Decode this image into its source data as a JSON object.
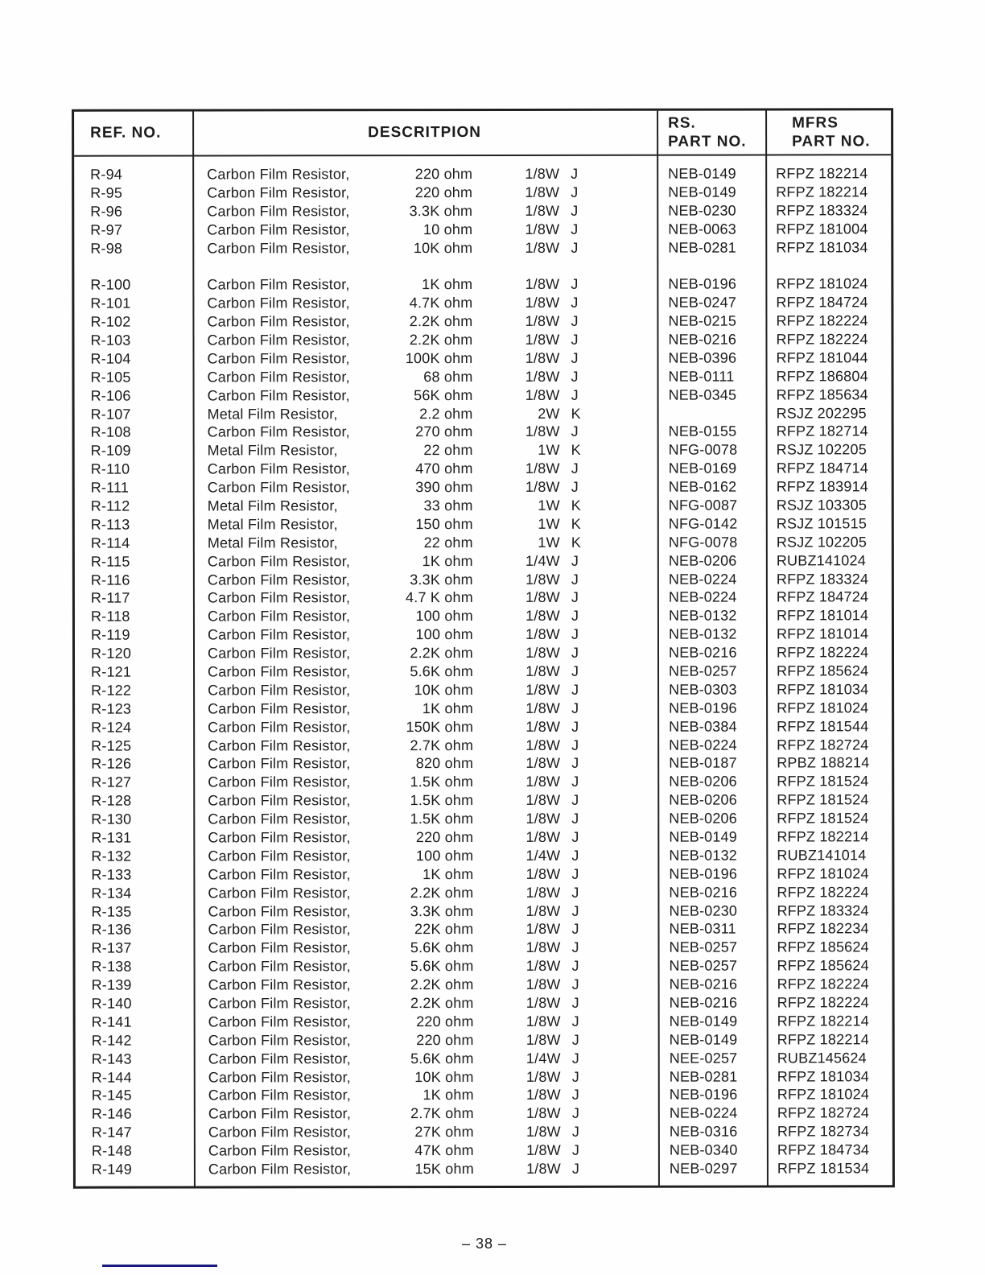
{
  "document": {
    "page_number": "– 38 –"
  },
  "colors": {
    "ink": "#1c1c1c",
    "paper": "#fefefe",
    "footer_line": "#1a1a7e"
  },
  "table": {
    "headers": {
      "ref": "REF. NO.",
      "description": "DESCRITPION",
      "rs_line1": "RS.",
      "rs_line2": "PART NO.",
      "mfrs_line1": "MFRS",
      "mfrs_line2": "PART NO."
    },
    "rows": [
      {
        "ref": "R-94",
        "name": "Carbon Film Resistor,",
        "value": "220 ohm",
        "watt": "1/8W",
        "tol": "J",
        "rs": "NEB-0149",
        "mfrs": "RFPZ 182214"
      },
      {
        "ref": "R-95",
        "name": "Carbon Film Resistor,",
        "value": "220 ohm",
        "watt": "1/8W",
        "tol": "J",
        "rs": "NEB-0149",
        "mfrs": "RFPZ 182214"
      },
      {
        "ref": "R-96",
        "name": "Carbon Film Resistor,",
        "value": "3.3K ohm",
        "watt": "1/8W",
        "tol": "J",
        "rs": "NEB-0230",
        "mfrs": "RFPZ 183324"
      },
      {
        "ref": "R-97",
        "name": "Carbon Film Resistor,",
        "value": "10 ohm",
        "watt": "1/8W",
        "tol": "J",
        "rs": "NEB-0063",
        "mfrs": "RFPZ 181004"
      },
      {
        "ref": "R-98",
        "name": "Carbon Film Resistor,",
        "value": "10K ohm",
        "watt": "1/8W",
        "tol": "J",
        "rs": "NEB-0281",
        "mfrs": "RFPZ 181034"
      },
      {
        "gap": true
      },
      {
        "ref": "R-100",
        "name": "Carbon Film Resistor,",
        "value": "1K ohm",
        "watt": "1/8W",
        "tol": "J",
        "rs": "NEB-0196",
        "mfrs": "RFPZ 181024"
      },
      {
        "ref": "R-101",
        "name": "Carbon Film Resistor,",
        "value": "4.7K ohm",
        "watt": "1/8W",
        "tol": "J",
        "rs": "NEB-0247",
        "mfrs": "RFPZ 184724"
      },
      {
        "ref": "R-102",
        "name": "Carbon Film Resistor,",
        "value": "2.2K ohm",
        "watt": "1/8W",
        "tol": "J",
        "rs": "NEB-0215",
        "mfrs": "RFPZ 182224"
      },
      {
        "ref": "R-103",
        "name": "Carbon Film Resistor,",
        "value": "2.2K ohm",
        "watt": "1/8W",
        "tol": "J",
        "rs": "NEB-0216",
        "mfrs": "RFPZ 182224"
      },
      {
        "ref": "R-104",
        "name": "Carbon Film Resistor,",
        "value": "100K ohm",
        "watt": "1/8W",
        "tol": "J",
        "rs": "NEB-0396",
        "mfrs": "RFPZ 181044"
      },
      {
        "ref": "R-105",
        "name": "Carbon Film Resistor,",
        "value": "68 ohm",
        "watt": "1/8W",
        "tol": "J",
        "rs": "NEB-0111",
        "mfrs": "RFPZ 186804"
      },
      {
        "ref": "R-106",
        "name": "Carbon Film Resistor,",
        "value": "56K ohm",
        "watt": "1/8W",
        "tol": "J",
        "rs": "NEB-0345",
        "mfrs": "RFPZ 185634"
      },
      {
        "ref": "R-107",
        "name": "Metal Film Resistor,",
        "value": "2.2 ohm",
        "watt": "2W",
        "tol": "K",
        "rs": "",
        "mfrs": "RSJZ 202295"
      },
      {
        "ref": "R-108",
        "name": "Carbon Film Resistor,",
        "value": "270 ohm",
        "watt": "1/8W",
        "tol": "J",
        "rs": "NEB-0155",
        "mfrs": "RFPZ 182714"
      },
      {
        "ref": "R-109",
        "name": "Metal Film Resistor,",
        "value": "22 ohm",
        "watt": "1W",
        "tol": "K",
        "rs": "NFG-0078",
        "mfrs": "RSJZ 102205"
      },
      {
        "ref": "R-110",
        "name": "Carbon Film Resistor,",
        "value": "470 ohm",
        "watt": "1/8W",
        "tol": "J",
        "rs": "NEB-0169",
        "mfrs": "RFPZ 184714"
      },
      {
        "ref": "R-111",
        "name": "Carbon Film Resistor,",
        "value": "390 ohm",
        "watt": "1/8W",
        "tol": "J",
        "rs": "NEB-0162",
        "mfrs": "RFPZ 183914"
      },
      {
        "ref": "R-112",
        "name": "Metal Film Resistor,",
        "value": "33 ohm",
        "watt": "1W",
        "tol": "K",
        "rs": "NFG-0087",
        "mfrs": "RSJZ 103305"
      },
      {
        "ref": "R-113",
        "name": "Metal Film Resistor,",
        "value": "150 ohm",
        "watt": "1W",
        "tol": "K",
        "rs": "NFG-0142",
        "mfrs": "RSJZ 101515"
      },
      {
        "ref": "R-114",
        "name": "Metal Film Resistor,",
        "value": "22 ohm",
        "watt": "1W",
        "tol": "K",
        "rs": "NFG-0078",
        "mfrs": "RSJZ 102205"
      },
      {
        "ref": "R-115",
        "name": "Carbon Film Resistor,",
        "value": "1K ohm",
        "watt": "1/4W",
        "tol": "J",
        "rs": "NEB-0206",
        "mfrs": "RUBZ141024"
      },
      {
        "ref": "R-116",
        "name": "Carbon Film Resistor,",
        "value": "3.3K ohm",
        "watt": "1/8W",
        "tol": "J",
        "rs": "NEB-0224",
        "mfrs": "RFPZ 183324"
      },
      {
        "ref": "R-117",
        "name": "Carbon Film Resistor,",
        "value": "4.7 K ohm",
        "watt": "1/8W",
        "tol": "J",
        "rs": "NEB-0224",
        "mfrs": "RFPZ 184724"
      },
      {
        "ref": "R-118",
        "name": "Carbon Film Resistor,",
        "value": "100 ohm",
        "watt": "1/8W",
        "tol": "J",
        "rs": "NEB-0132",
        "mfrs": "RFPZ 181014"
      },
      {
        "ref": "R-119",
        "name": "Carbon Film Resistor,",
        "value": "100 ohm",
        "watt": "1/8W",
        "tol": "J",
        "rs": "NEB-0132",
        "mfrs": "RFPZ 181014"
      },
      {
        "ref": "R-120",
        "name": "Carbon Film Resistor,",
        "value": "2.2K ohm",
        "watt": "1/8W",
        "tol": "J",
        "rs": "NEB-0216",
        "mfrs": "RFPZ 182224"
      },
      {
        "ref": "R-121",
        "name": "Carbon Film Resistor,",
        "value": "5.6K ohm",
        "watt": "1/8W",
        "tol": "J",
        "rs": "NEB-0257",
        "mfrs": "RFPZ 185624"
      },
      {
        "ref": "R-122",
        "name": "Carbon Film Resistor,",
        "value": "10K ohm",
        "watt": "1/8W",
        "tol": "J",
        "rs": "NEB-0303",
        "mfrs": "RFPZ 181034"
      },
      {
        "ref": "R-123",
        "name": "Carbon Film Resistor,",
        "value": "1K ohm",
        "watt": "1/8W",
        "tol": "J",
        "rs": "NEB-0196",
        "mfrs": "RFPZ 181024"
      },
      {
        "ref": "R-124",
        "name": "Carbon Film Resistor,",
        "value": "150K ohm",
        "watt": "1/8W",
        "tol": "J",
        "rs": "NEB-0384",
        "mfrs": "RFPZ 181544"
      },
      {
        "ref": "R-125",
        "name": "Carbon Film Resistor,",
        "value": "2.7K ohm",
        "watt": "1/8W",
        "tol": "J",
        "rs": "NEB-0224",
        "mfrs": "RFPZ 182724"
      },
      {
        "ref": "R-126",
        "name": "Carbon Film Resistor,",
        "value": "820 ohm",
        "watt": "1/8W",
        "tol": "J",
        "rs": "NEB-0187",
        "mfrs": "RPBZ 188214"
      },
      {
        "ref": "R-127",
        "name": "Carbon Film Resistor,",
        "value": "1.5K ohm",
        "watt": "1/8W",
        "tol": "J",
        "rs": "NEB-0206",
        "mfrs": "RFPZ 181524"
      },
      {
        "ref": "R-128",
        "name": "Carbon Film Resistor,",
        "value": "1.5K ohm",
        "watt": "1/8W",
        "tol": "J",
        "rs": "NEB-0206",
        "mfrs": "RFPZ 181524"
      },
      {
        "ref": "R-130",
        "name": "Carbon Film Resistor,",
        "value": "1.5K ohm",
        "watt": "1/8W",
        "tol": "J",
        "rs": "NEB-0206",
        "mfrs": "RFPZ 181524"
      },
      {
        "ref": "R-131",
        "name": "Carbon Film Resistor,",
        "value": "220 ohm",
        "watt": "1/8W",
        "tol": "J",
        "rs": "NEB-0149",
        "mfrs": "RFPZ 182214"
      },
      {
        "ref": "R-132",
        "name": "Carbon Film Resistor,",
        "value": "100 ohm",
        "watt": "1/4W",
        "tol": "J",
        "rs": "NEB-0132",
        "mfrs": "RUBZ141014"
      },
      {
        "ref": "R-133",
        "name": "Carbon Film Resistor,",
        "value": "1K ohm",
        "watt": "1/8W",
        "tol": "J",
        "rs": "NEB-0196",
        "mfrs": "RFPZ 181024"
      },
      {
        "ref": "R-134",
        "name": "Carbon Film Resistor,",
        "value": "2.2K ohm",
        "watt": "1/8W",
        "tol": "J",
        "rs": "NEB-0216",
        "mfrs": "RFPZ 182224"
      },
      {
        "ref": "R-135",
        "name": "Carbon Film Resistor,",
        "value": "3.3K ohm",
        "watt": "1/8W",
        "tol": "J",
        "rs": "NEB-0230",
        "mfrs": "RFPZ 183324"
      },
      {
        "ref": "R-136",
        "name": "Carbon Film Resistor,",
        "value": "22K ohm",
        "watt": "1/8W",
        "tol": "J",
        "rs": "NEB-0311",
        "mfrs": "RFPZ 182234"
      },
      {
        "ref": "R-137",
        "name": "Carbon Film Resistor,",
        "value": "5.6K ohm",
        "watt": "1/8W",
        "tol": "J",
        "rs": "NEB-0257",
        "mfrs": "RFPZ 185624"
      },
      {
        "ref": "R-138",
        "name": "Carbon Film Resistor,",
        "value": "5.6K ohm",
        "watt": "1/8W",
        "tol": "J",
        "rs": "NEB-0257",
        "mfrs": "RFPZ 185624"
      },
      {
        "ref": "R-139",
        "name": "Carbon Film Resistor,",
        "value": "2.2K ohm",
        "watt": "1/8W",
        "tol": "J",
        "rs": "NEB-0216",
        "mfrs": "RFPZ 182224"
      },
      {
        "ref": "R-140",
        "name": "Carbon Film Resistor,",
        "value": "2.2K ohm",
        "watt": "1/8W",
        "tol": "J",
        "rs": "NEB-0216",
        "mfrs": "RFPZ 182224"
      },
      {
        "ref": "R-141",
        "name": "Carbon Film Resistor,",
        "value": "220 ohm",
        "watt": "1/8W",
        "tol": "J",
        "rs": "NEB-0149",
        "mfrs": "RFPZ 182214"
      },
      {
        "ref": "R-142",
        "name": "Carbon Film Resistor,",
        "value": "220 ohm",
        "watt": "1/8W",
        "tol": "J",
        "rs": "NEB-0149",
        "mfrs": "RFPZ 182214"
      },
      {
        "ref": "R-143",
        "name": "Carbon Film Resistor,",
        "value": "5.6K ohm",
        "watt": "1/4W",
        "tol": "J",
        "rs": "NEE-0257",
        "mfrs": "RUBZ145624"
      },
      {
        "ref": "R-144",
        "name": "Carbon Film Resistor,",
        "value": "10K ohm",
        "watt": "1/8W",
        "tol": "J",
        "rs": "NEB-0281",
        "mfrs": "RFPZ 181034"
      },
      {
        "ref": "R-145",
        "name": "Carbon Film Resistor,",
        "value": "1K ohm",
        "watt": "1/8W",
        "tol": "J",
        "rs": "NEB-0196",
        "mfrs": "RFPZ 181024"
      },
      {
        "ref": "R-146",
        "name": "Carbon Film Resistor,",
        "value": "2.7K ohm",
        "watt": "1/8W",
        "tol": "J",
        "rs": "NEB-0224",
        "mfrs": "RFPZ 182724"
      },
      {
        "ref": "R-147",
        "name": "Carbon Film Resistor,",
        "value": "27K ohm",
        "watt": "1/8W",
        "tol": "J",
        "rs": "NEB-0316",
        "mfrs": "RFPZ 182734"
      },
      {
        "ref": "R-148",
        "name": "Carbon Film Resistor,",
        "value": "47K ohm",
        "watt": "1/8W",
        "tol": "J",
        "rs": "NEB-0340",
        "mfrs": "RFPZ 184734"
      },
      {
        "ref": "R-149",
        "name": "Carbon Film Resistor,",
        "value": "15K ohm",
        "watt": "1/8W",
        "tol": "J",
        "rs": "NEB-0297",
        "mfrs": "RFPZ 181534"
      }
    ]
  }
}
